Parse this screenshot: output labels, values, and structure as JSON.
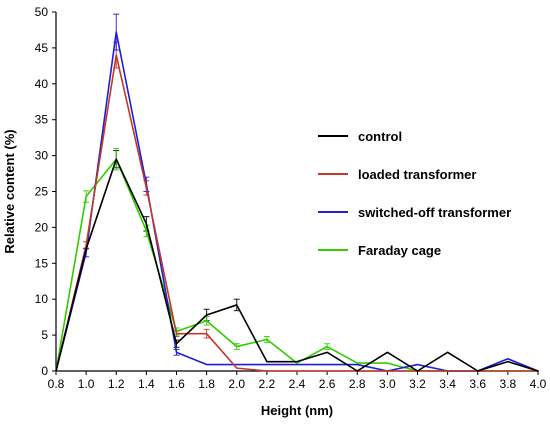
{
  "chart_data": {
    "type": "line",
    "title": "",
    "xlabel": "Height (nm)",
    "ylabel": "Relative content (%)",
    "xlim": [
      0.8,
      4.0
    ],
    "ylim": [
      0,
      50
    ],
    "x_ticks": [
      "0.8",
      "1.0",
      "1.2",
      "1.4",
      "1.6",
      "1.8",
      "2.0",
      "2.2",
      "2.4",
      "2.6",
      "2.8",
      "3.0",
      "3.2",
      "3.4",
      "3.6",
      "3.8",
      "4.0"
    ],
    "y_ticks": [
      "0",
      "5",
      "10",
      "15",
      "20",
      "25",
      "30",
      "35",
      "40",
      "45",
      "50"
    ],
    "grid": false,
    "legend_position": "right-middle",
    "x": [
      0.8,
      1.0,
      1.2,
      1.4,
      1.6,
      1.8,
      2.0,
      2.2,
      2.4,
      2.6,
      2.8,
      3.0,
      3.2,
      3.4,
      3.6,
      3.8,
      4.0
    ],
    "series": [
      {
        "name": "control",
        "color": "#000000",
        "values": [
          0,
          17,
          29.5,
          20.5,
          3.8,
          7.8,
          9.2,
          1.3,
          1.3,
          2.6,
          0,
          2.6,
          0,
          2.6,
          0,
          1.3,
          0
        ],
        "errors": [
          0,
          0,
          1.2,
          1.0,
          0.5,
          0.8,
          0.8,
          0,
          0,
          0,
          0,
          0,
          0,
          0,
          0,
          0,
          0
        ]
      },
      {
        "name": "loaded transformer",
        "color": "#c0392b",
        "values": [
          0,
          17.5,
          44,
          25.5,
          5.2,
          5.2,
          0.4,
          0,
          0,
          0,
          0,
          0,
          0,
          0,
          0,
          0,
          0
        ],
        "errors": [
          0,
          0.5,
          1.8,
          1.0,
          0.4,
          0.6,
          0,
          0,
          0,
          0,
          0,
          0,
          0,
          0,
          0,
          0,
          0
        ]
      },
      {
        "name": "switched-off transformer",
        "color": "#1f1fd6",
        "values": [
          0,
          16.5,
          47.2,
          26,
          2.6,
          0.9,
          0.9,
          0.9,
          0.9,
          0.9,
          0.9,
          0,
          0.9,
          0,
          0,
          1.7,
          0
        ],
        "errors": [
          0,
          0.6,
          2.5,
          1.0,
          0.4,
          0,
          0,
          0,
          0,
          0,
          0,
          0,
          0,
          0,
          0,
          0,
          0
        ]
      },
      {
        "name": "Faraday cage",
        "color": "#33cc00",
        "values": [
          0,
          24.3,
          29.5,
          19.5,
          5.5,
          7,
          3.4,
          4.4,
          1.1,
          3.4,
          1.1,
          1.1,
          0,
          0,
          0,
          0,
          0
        ],
        "errors": [
          0,
          0.8,
          1.5,
          0.8,
          0.5,
          0.6,
          0.4,
          0.4,
          0,
          0.4,
          0,
          0,
          0,
          0,
          0,
          0,
          0
        ]
      }
    ]
  }
}
